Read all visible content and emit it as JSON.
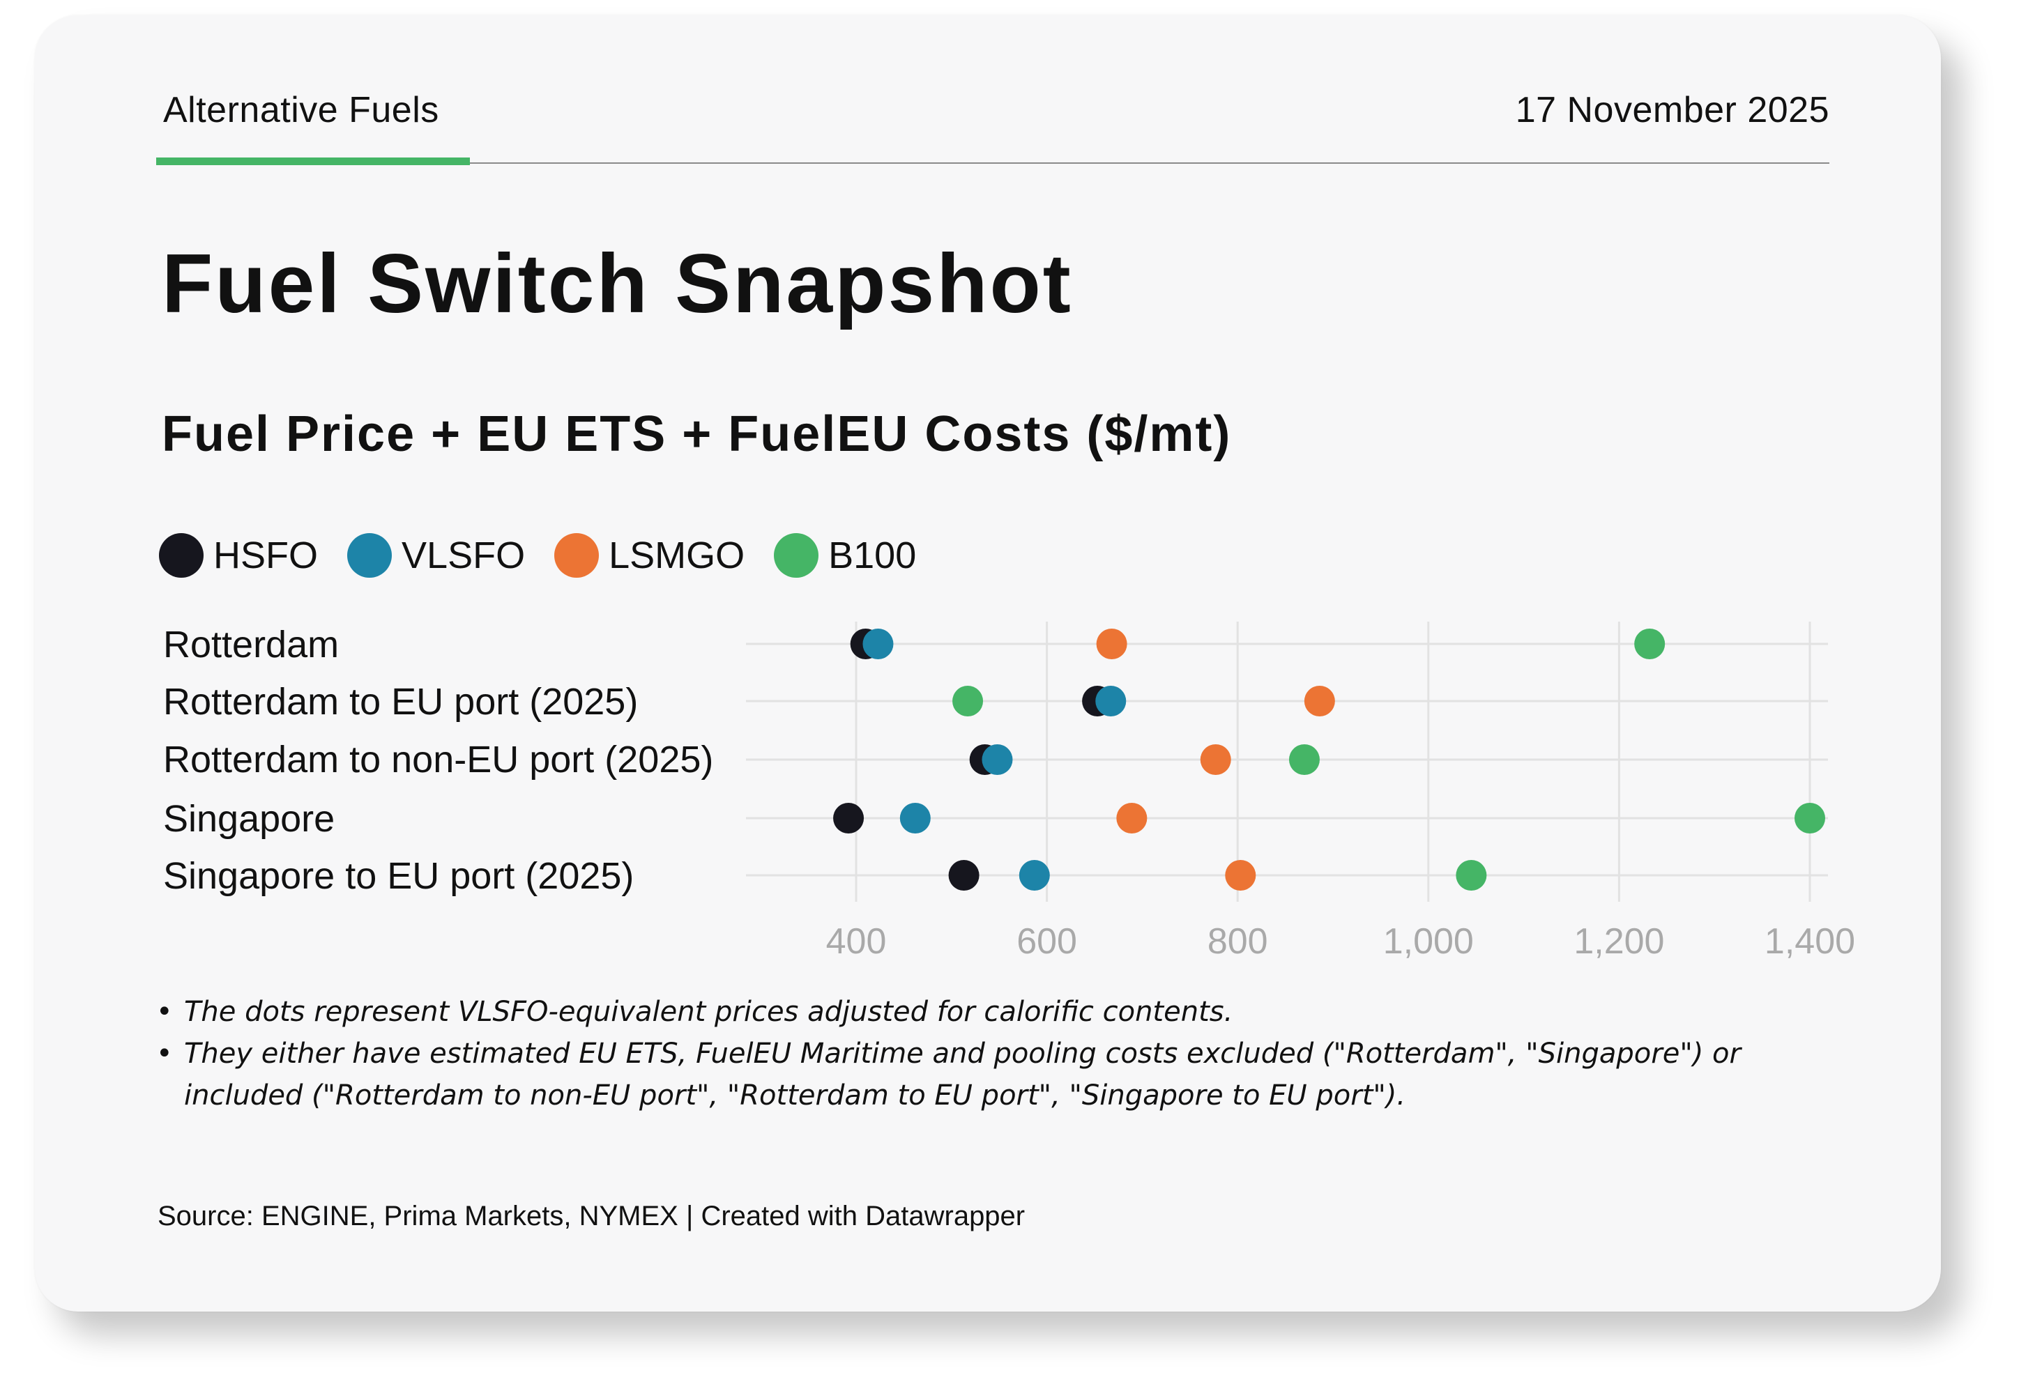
{
  "header": {
    "section": "Alternative Fuels",
    "date": "17 November 2025",
    "accent_color": "#45b566"
  },
  "title": "Fuel Switch Snapshot",
  "notes": [
    "The dots represent VLSFO-equivalent prices adjusted for calorific contents.",
    "They either have estimated EU ETS, FuelEU Maritime and pooling costs excluded (\"Rotterdam\", \"Singapore\") or included (\"Rotterdam to non-EU port\", \"Rotterdam to EU port\", \"Singapore to EU port\")."
  ],
  "source": "Source: ENGINE, Prima Markets, NYMEX | Created with Datawrapper",
  "chart_data": {
    "type": "scatter",
    "title": "Fuel Price + EU ETS + FuelEU Costs ($/mt)",
    "xlabel": "",
    "ylabel": "",
    "categories": [
      "Rotterdam",
      "Rotterdam to EU port (2025)",
      "Rotterdam to non-EU port (2025)",
      "Singapore",
      "Singapore to EU port (2025)"
    ],
    "series": [
      {
        "name": "HSFO",
        "color": "#16161e",
        "values": [
          410,
          653,
          535,
          392,
          513
        ]
      },
      {
        "name": "VLSFO",
        "color": "#1d84a8",
        "values": [
          423,
          667,
          548,
          462,
          587
        ]
      },
      {
        "name": "LSMGO",
        "color": "#ec7434",
        "values": [
          668,
          886,
          777,
          689,
          803
        ]
      },
      {
        "name": "B100",
        "color": "#45b566",
        "values": [
          1232,
          517,
          870,
          1400,
          1045
        ]
      }
    ],
    "xlim": [
      380,
      1400
    ],
    "xticks": [
      400,
      600,
      800,
      1000,
      1200,
      1400
    ],
    "xtick_labels": [
      "400",
      "600",
      "800",
      "1,000",
      "1,200",
      "1,400"
    ],
    "grid": true,
    "legend_position": "top-left"
  }
}
